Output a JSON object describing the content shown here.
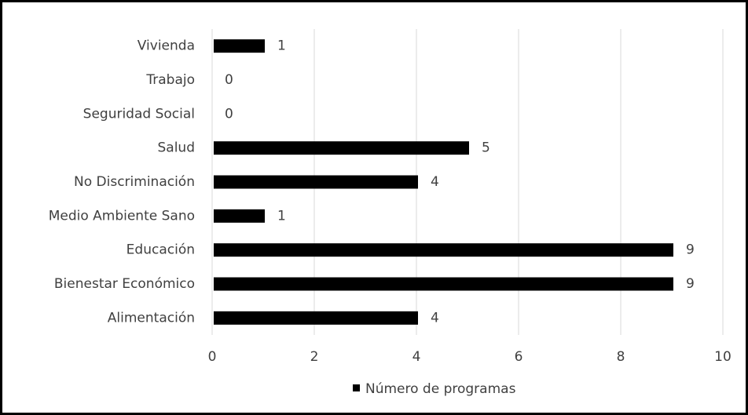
{
  "chart_data": {
    "type": "bar",
    "orientation": "horizontal",
    "categories": [
      "Vivienda",
      "Trabajo",
      "Seguridad Social",
      "Salud",
      "No Discriminación",
      "Medio Ambiente Sano",
      "Educación",
      "Bienestar Económico",
      "Alimentación"
    ],
    "series": [
      {
        "name": "Número de programas",
        "values": [
          1,
          0,
          0,
          5,
          4,
          1,
          9,
          9,
          4
        ],
        "color": "#000000"
      }
    ],
    "xlim": [
      0,
      10
    ],
    "xticks": [
      "0",
      "2",
      "4",
      "6",
      "8",
      "10"
    ],
    "grid": true,
    "data_labels": true,
    "legend": "bottom",
    "title": "",
    "xlabel": "",
    "ylabel": ""
  }
}
